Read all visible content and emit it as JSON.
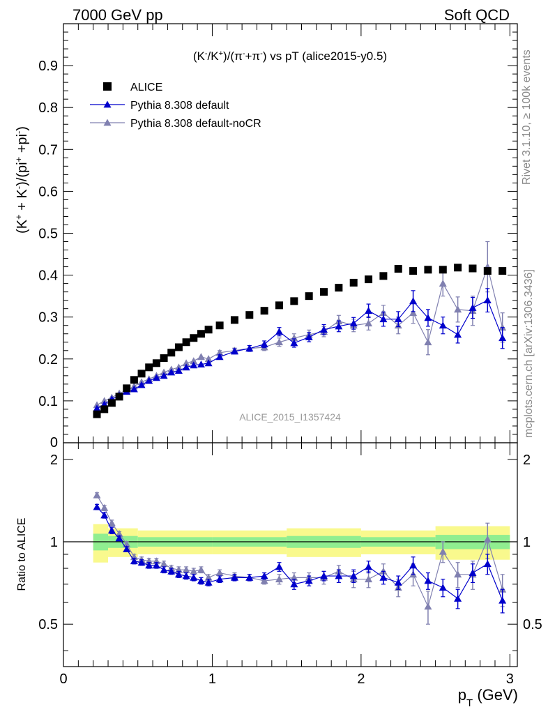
{
  "header": {
    "left_label": "7000 GeV pp",
    "right_label": "Soft QCD"
  },
  "side_labels": {
    "rivet": "Rivet 3.1.10, ≥ 100k events",
    "mcplots": "mcplots.cern.ch [arXiv:1306.3436]"
  },
  "chart_data": [
    {
      "type": "scatter",
      "panel": "main",
      "title": "(K-/K+)/(π-+π-) vs pT (alice2015-y0.5)",
      "ylabel": "(K+ + K-)/(pi+ +pi-)",
      "xlim": [
        0,
        3.05
      ],
      "ylim": [
        0,
        1.0
      ],
      "yticks": [
        0.1,
        0.2,
        0.3,
        0.4,
        0.5,
        0.6,
        0.7,
        0.8,
        0.9
      ],
      "grid": false,
      "legend": "top-left",
      "watermark": "ALICE_2015_I1357424",
      "x": [
        0.225,
        0.275,
        0.325,
        0.375,
        0.425,
        0.475,
        0.525,
        0.575,
        0.625,
        0.675,
        0.725,
        0.775,
        0.825,
        0.875,
        0.925,
        0.975,
        1.05,
        1.15,
        1.25,
        1.35,
        1.45,
        1.55,
        1.65,
        1.75,
        1.85,
        1.95,
        2.05,
        2.15,
        2.25,
        2.35,
        2.45,
        2.55,
        2.65,
        2.75,
        2.85,
        2.95
      ],
      "series": [
        {
          "name": "ALICE",
          "marker": "square",
          "color": "#000000",
          "values": [
            0.068,
            0.08,
            0.095,
            0.11,
            0.13,
            0.15,
            0.165,
            0.18,
            0.19,
            0.202,
            0.215,
            0.228,
            0.24,
            0.25,
            0.26,
            0.27,
            0.28,
            0.293,
            0.305,
            0.315,
            0.328,
            0.338,
            0.35,
            0.36,
            0.37,
            0.382,
            0.39,
            0.398,
            0.415,
            0.41,
            0.413,
            0.413,
            0.418,
            0.416,
            0.41,
            0.41
          ]
        },
        {
          "name": "Pythia 8.308 default",
          "marker": "triangle",
          "color": "#0000cc",
          "values": [
            0.082,
            0.092,
            0.104,
            0.113,
            0.122,
            0.128,
            0.138,
            0.148,
            0.155,
            0.16,
            0.168,
            0.172,
            0.18,
            0.185,
            0.187,
            0.19,
            0.205,
            0.218,
            0.225,
            0.235,
            0.265,
            0.238,
            0.252,
            0.27,
            0.278,
            0.285,
            0.315,
            0.295,
            0.295,
            0.338,
            0.298,
            0.28,
            0.258,
            0.322,
            0.34,
            0.25
          ],
          "errors": [
            0.002,
            0.002,
            0.002,
            0.002,
            0.002,
            0.002,
            0.002,
            0.002,
            0.002,
            0.003,
            0.003,
            0.003,
            0.003,
            0.004,
            0.004,
            0.004,
            0.005,
            0.006,
            0.007,
            0.008,
            0.01,
            0.01,
            0.011,
            0.012,
            0.013,
            0.014,
            0.016,
            0.017,
            0.018,
            0.025,
            0.02,
            0.02,
            0.02,
            0.025,
            0.028,
            0.025
          ]
        },
        {
          "name": "Pythia 8.308 default-noCR",
          "marker": "triangle",
          "color": "#8080b0",
          "values": [
            0.09,
            0.1,
            0.108,
            0.118,
            0.125,
            0.135,
            0.145,
            0.152,
            0.16,
            0.168,
            0.175,
            0.18,
            0.19,
            0.195,
            0.205,
            0.2,
            0.215,
            0.22,
            0.225,
            0.228,
            0.24,
            0.25,
            0.258,
            0.265,
            0.29,
            0.28,
            0.285,
            0.31,
            0.28,
            0.31,
            0.24,
            0.38,
            0.318,
            0.315,
            0.42,
            0.275
          ],
          "errors": [
            0.002,
            0.002,
            0.002,
            0.002,
            0.002,
            0.002,
            0.002,
            0.002,
            0.002,
            0.003,
            0.003,
            0.003,
            0.003,
            0.004,
            0.004,
            0.004,
            0.005,
            0.006,
            0.007,
            0.008,
            0.01,
            0.01,
            0.011,
            0.012,
            0.014,
            0.015,
            0.016,
            0.018,
            0.02,
            0.025,
            0.03,
            0.03,
            0.03,
            0.035,
            0.06,
            0.035
          ]
        }
      ]
    },
    {
      "type": "line",
      "panel": "ratio",
      "ylabel": "Ratio to ALICE",
      "xlabel": "pT (GeV)",
      "xlim": [
        0,
        3.05
      ],
      "ylim": [
        0.35,
        2.3
      ],
      "yticks": [
        0.5,
        1,
        2
      ],
      "xticks": [
        0,
        1,
        2,
        3
      ],
      "reference_line": 1,
      "bands": {
        "x_edges": [
          0.2,
          0.3,
          0.5,
          1.0,
          1.5,
          2.0,
          2.5,
          3.0
        ],
        "inner_half_width": [
          0.07,
          0.05,
          0.04,
          0.04,
          0.05,
          0.04,
          0.06
        ],
        "outer_half_width": [
          0.16,
          0.12,
          0.1,
          0.1,
          0.12,
          0.1,
          0.14
        ],
        "inner_color": "#90ee90",
        "outer_color": "#f9f98d"
      },
      "series": [
        {
          "name": "Pythia 8.308 default",
          "color": "#0000cc",
          "values": [
            1.34,
            1.25,
            1.1,
            1.03,
            0.94,
            0.85,
            0.84,
            0.82,
            0.82,
            0.79,
            0.78,
            0.76,
            0.75,
            0.74,
            0.72,
            0.71,
            0.73,
            0.74,
            0.74,
            0.75,
            0.81,
            0.7,
            0.72,
            0.75,
            0.75,
            0.75,
            0.81,
            0.74,
            0.71,
            0.82,
            0.72,
            0.68,
            0.62,
            0.77,
            0.83,
            0.61
          ],
          "errors": [
            0.03,
            0.03,
            0.03,
            0.02,
            0.02,
            0.02,
            0.02,
            0.02,
            0.02,
            0.02,
            0.02,
            0.02,
            0.02,
            0.02,
            0.02,
            0.02,
            0.02,
            0.02,
            0.02,
            0.02,
            0.03,
            0.03,
            0.03,
            0.03,
            0.04,
            0.04,
            0.04,
            0.04,
            0.04,
            0.06,
            0.05,
            0.05,
            0.05,
            0.06,
            0.07,
            0.06
          ]
        },
        {
          "name": "Pythia 8.308 default-noCR",
          "color": "#8080b0",
          "values": [
            1.48,
            1.33,
            1.17,
            1.07,
            0.98,
            0.88,
            0.86,
            0.85,
            0.85,
            0.83,
            0.8,
            0.79,
            0.79,
            0.78,
            0.79,
            0.74,
            0.77,
            0.75,
            0.74,
            0.72,
            0.73,
            0.74,
            0.74,
            0.74,
            0.78,
            0.73,
            0.73,
            0.78,
            0.68,
            0.76,
            0.58,
            0.92,
            0.76,
            0.76,
            1.02,
            0.67
          ],
          "errors": [
            0.03,
            0.03,
            0.03,
            0.02,
            0.02,
            0.02,
            0.02,
            0.02,
            0.02,
            0.02,
            0.02,
            0.02,
            0.02,
            0.02,
            0.02,
            0.02,
            0.02,
            0.02,
            0.02,
            0.02,
            0.03,
            0.03,
            0.03,
            0.04,
            0.04,
            0.05,
            0.05,
            0.05,
            0.05,
            0.07,
            0.08,
            0.08,
            0.08,
            0.09,
            0.15,
            0.09
          ]
        }
      ]
    }
  ]
}
